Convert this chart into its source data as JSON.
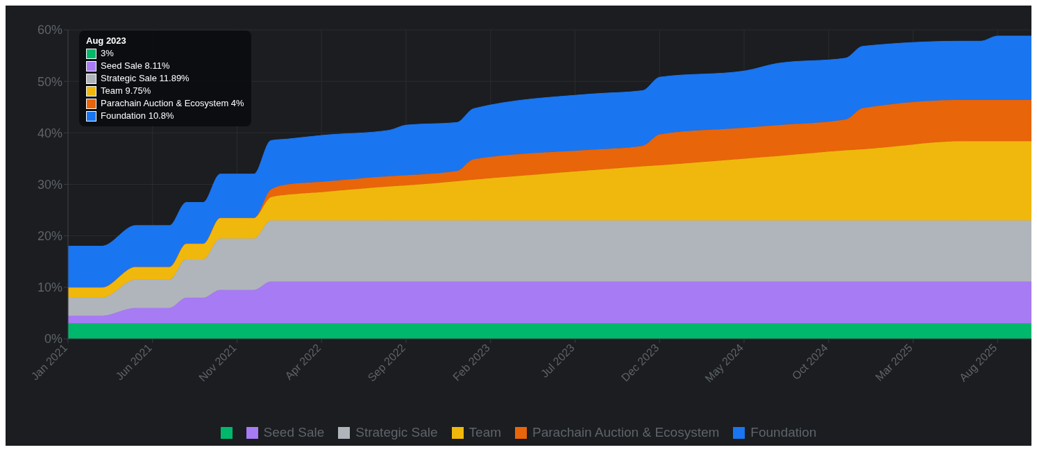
{
  "chart_data": {
    "type": "area",
    "stacked": true,
    "grid": true,
    "legend": "bottom",
    "marker": "none",
    "x": [
      "2021-01",
      "2021-03",
      "2021-05",
      "2021-07",
      "2021-08",
      "2021-09",
      "2021-10",
      "2021-12",
      "2022-01",
      "2022-02",
      "2022-04",
      "2022-08",
      "2022-09",
      "2022-12",
      "2023-01",
      "2023-08",
      "2023-11",
      "2023-12",
      "2024-05",
      "2024-07",
      "2024-11",
      "2024-12",
      "2025-06",
      "2025-07",
      "2025-08",
      "2025-10"
    ],
    "xlim": [
      "2021-01",
      "2025-10"
    ],
    "xticks": [
      {
        "value": "2021-01",
        "label": "Jan 2021"
      },
      {
        "value": "2021-06",
        "label": "Jun 2021"
      },
      {
        "value": "2021-11",
        "label": "Nov 2021"
      },
      {
        "value": "2022-04",
        "label": "Apr 2022"
      },
      {
        "value": "2022-09",
        "label": "Sep 2022"
      },
      {
        "value": "2023-02",
        "label": "Feb 2023"
      },
      {
        "value": "2023-07",
        "label": "Jul 2023"
      },
      {
        "value": "2023-12",
        "label": "Dec 2023"
      },
      {
        "value": "2024-05",
        "label": "May 2024"
      },
      {
        "value": "2024-10",
        "label": "Oct 2024"
      },
      {
        "value": "2025-03",
        "label": "Mar 2025"
      },
      {
        "value": "2025-08",
        "label": "Aug 2025"
      }
    ],
    "ylim": [
      0,
      60
    ],
    "yticks": [
      {
        "value": 0,
        "label": "0%"
      },
      {
        "value": 10,
        "label": "10%"
      },
      {
        "value": 20,
        "label": "20%"
      },
      {
        "value": 30,
        "label": "30%"
      },
      {
        "value": 40,
        "label": "40%"
      },
      {
        "value": 50,
        "label": "50%"
      },
      {
        "value": 60,
        "label": "60%"
      }
    ],
    "series": [
      {
        "color": "#00b86b",
        "values": [
          3,
          3,
          3,
          3,
          3,
          3,
          3,
          3,
          3,
          3,
          3,
          3,
          3,
          3,
          3,
          3,
          3,
          3,
          3,
          3,
          3,
          3,
          3,
          3,
          3,
          3
        ]
      },
      {
        "name": "Seed Sale",
        "color": "#a77bf3",
        "values": [
          1.5,
          1.5,
          3,
          3,
          5,
          5,
          6.5,
          6.5,
          8.11,
          8.11,
          8.11,
          8.11,
          8.11,
          8.11,
          8.11,
          8.11,
          8.11,
          8.11,
          8.11,
          8.11,
          8.11,
          8.11,
          8.11,
          8.11,
          8.11,
          8.11
        ]
      },
      {
        "name": "Strategic Sale",
        "color": "#b0b5bb",
        "values": [
          3.5,
          3.5,
          5.5,
          5.5,
          7.5,
          7.5,
          10,
          10,
          11.89,
          11.89,
          11.89,
          11.89,
          11.89,
          11.89,
          11.89,
          11.89,
          11.89,
          11.89,
          11.89,
          11.89,
          11.89,
          11.89,
          11.89,
          11.89,
          11.89,
          11.89
        ]
      },
      {
        "name": "Team",
        "color": "#f0b80c",
        "values": [
          2,
          2,
          2.5,
          2.5,
          3,
          3,
          4,
          4,
          4.5,
          5,
          5.5,
          6.6,
          6.8,
          7.6,
          7.9,
          9.75,
          10.5,
          10.7,
          12,
          12.5,
          13.6,
          13.8,
          15.4,
          15.4,
          15.4,
          15.4
        ]
      },
      {
        "name": "Parachain Auction & Ecosystem",
        "color": "#e8650a",
        "values": [
          0,
          0,
          0,
          0,
          0,
          0,
          0,
          0,
          1.5,
          2,
          2,
          2,
          2,
          2,
          4,
          4,
          4,
          6,
          6,
          6,
          6,
          8,
          8,
          8,
          8,
          8
        ]
      },
      {
        "name": "Foundation",
        "color": "#1a75f0",
        "values": [
          8,
          8,
          8,
          8,
          8,
          8,
          8.5,
          8.5,
          9.5,
          8.8,
          9,
          8.9,
          9.7,
          9.4,
          9.8,
          10.8,
          10.7,
          11.1,
          11,
          12,
          11.9,
          12,
          11.4,
          11.4,
          12.4,
          12.4
        ]
      }
    ],
    "annotations": [
      "Aug 2023",
      "3%",
      "Seed Sale 8.11%",
      "Strategic Sale 11.89%",
      "Team 9.75%",
      "Parachain Auction & Ecosystem 4%",
      "Foundation 10.8%"
    ]
  }
}
